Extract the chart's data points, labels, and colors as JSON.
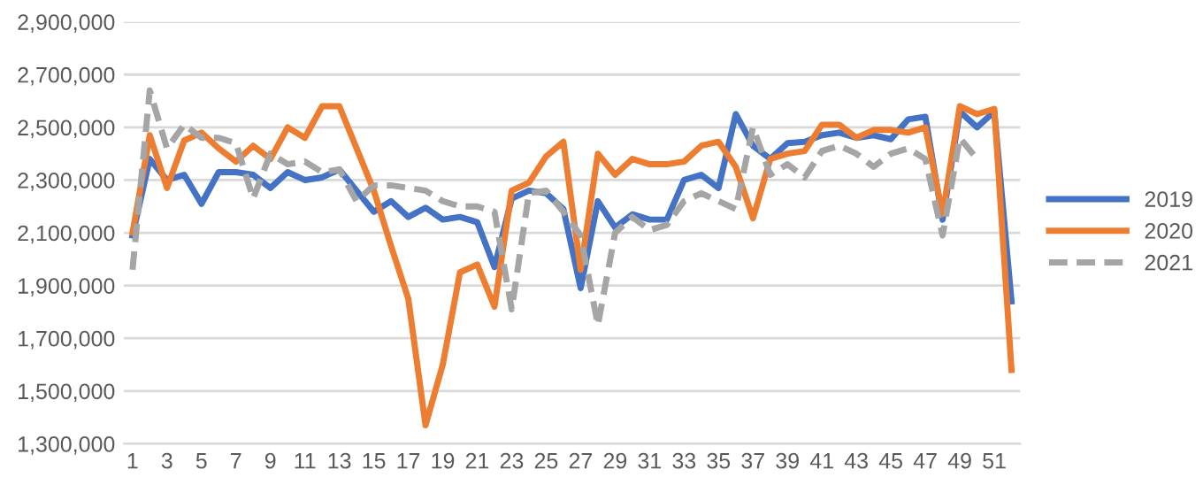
{
  "chart_data": {
    "type": "line",
    "categories": [
      "1",
      null,
      "3",
      null,
      "5",
      null,
      "7",
      null,
      "9",
      null,
      "11",
      null,
      "13",
      null,
      "15",
      null,
      "17",
      null,
      "19",
      null,
      "21",
      null,
      "23",
      null,
      "25",
      null,
      "27",
      null,
      "29",
      null,
      "31",
      null,
      "33",
      null,
      "35",
      null,
      "37",
      null,
      "39",
      null,
      "41",
      null,
      "43",
      null,
      "45",
      null,
      "47",
      null,
      "49",
      null,
      "51",
      null
    ],
    "series": [
      {
        "name": "2019",
        "color": "#4472c4",
        "line_style": "solid",
        "values": [
          2090000,
          2380000,
          2300000,
          2320000,
          2210000,
          2330000,
          2330000,
          2320000,
          2270000,
          2330000,
          2300000,
          2310000,
          2340000,
          2260000,
          2180000,
          2220000,
          2160000,
          2195000,
          2150000,
          2160000,
          2140000,
          1970000,
          2230000,
          2260000,
          2250000,
          2190000,
          1890000,
          2220000,
          2120000,
          2170000,
          2150000,
          2150000,
          2300000,
          2320000,
          2270000,
          2550000,
          2430000,
          2380000,
          2440000,
          2445000,
          2470000,
          2480000,
          2460000,
          2470000,
          2455000,
          2530000,
          2540000,
          2150000,
          2560000,
          2500000,
          2560000,
          1840000
        ]
      },
      {
        "name": "2020",
        "color": "#ed7d31",
        "line_style": "solid",
        "values": [
          2100000,
          2470000,
          2270000,
          2450000,
          2480000,
          2420000,
          2370000,
          2430000,
          2380000,
          2500000,
          2460000,
          2580000,
          2580000,
          2420000,
          2260000,
          2050000,
          1850000,
          1370000,
          1600000,
          1950000,
          1980000,
          1820000,
          2260000,
          2290000,
          2390000,
          2445000,
          1960000,
          2400000,
          2320000,
          2380000,
          2360000,
          2360000,
          2370000,
          2430000,
          2445000,
          2350000,
          2155000,
          2380000,
          2400000,
          2410000,
          2510000,
          2510000,
          2460000,
          2490000,
          2490000,
          2480000,
          2500000,
          2170000,
          2580000,
          2550000,
          2570000,
          1580000
        ]
      },
      {
        "name": "2021",
        "color": "#a5a5a5",
        "line_style": "dashed",
        "values": [
          1960000,
          2640000,
          2420000,
          2510000,
          2460000,
          2460000,
          2440000,
          2230000,
          2400000,
          2360000,
          2370000,
          2330000,
          2340000,
          2220000,
          2280000,
          2280000,
          2270000,
          2260000,
          2220000,
          2200000,
          2200000,
          2180000,
          1810000,
          2250000,
          2260000,
          2180000,
          2090000,
          1750000,
          2100000,
          2160000,
          2110000,
          2130000,
          2220000,
          2250000,
          2220000,
          2190000,
          2500000,
          2320000,
          2360000,
          2310000,
          2410000,
          2430000,
          2400000,
          2350000,
          2400000,
          2420000,
          2380000,
          2090000,
          2460000,
          2380000,
          null,
          null
        ]
      }
    ],
    "ylim": [
      1300000,
      2900000
    ],
    "yticks": [
      {
        "value": 1300000,
        "label": "1,300,000"
      },
      {
        "value": 1500000,
        "label": "1,500,000"
      },
      {
        "value": 1700000,
        "label": "1,700,000"
      },
      {
        "value": 1900000,
        "label": "1,900,000"
      },
      {
        "value": 2100000,
        "label": "2,100,000"
      },
      {
        "value": 2300000,
        "label": "2,300,000"
      },
      {
        "value": 2500000,
        "label": "2,500,000"
      },
      {
        "value": 2700000,
        "label": "2,700,000"
      },
      {
        "value": 2900000,
        "label": "2,900,000"
      }
    ],
    "grid": "y",
    "legend": "right",
    "marker": "none"
  }
}
